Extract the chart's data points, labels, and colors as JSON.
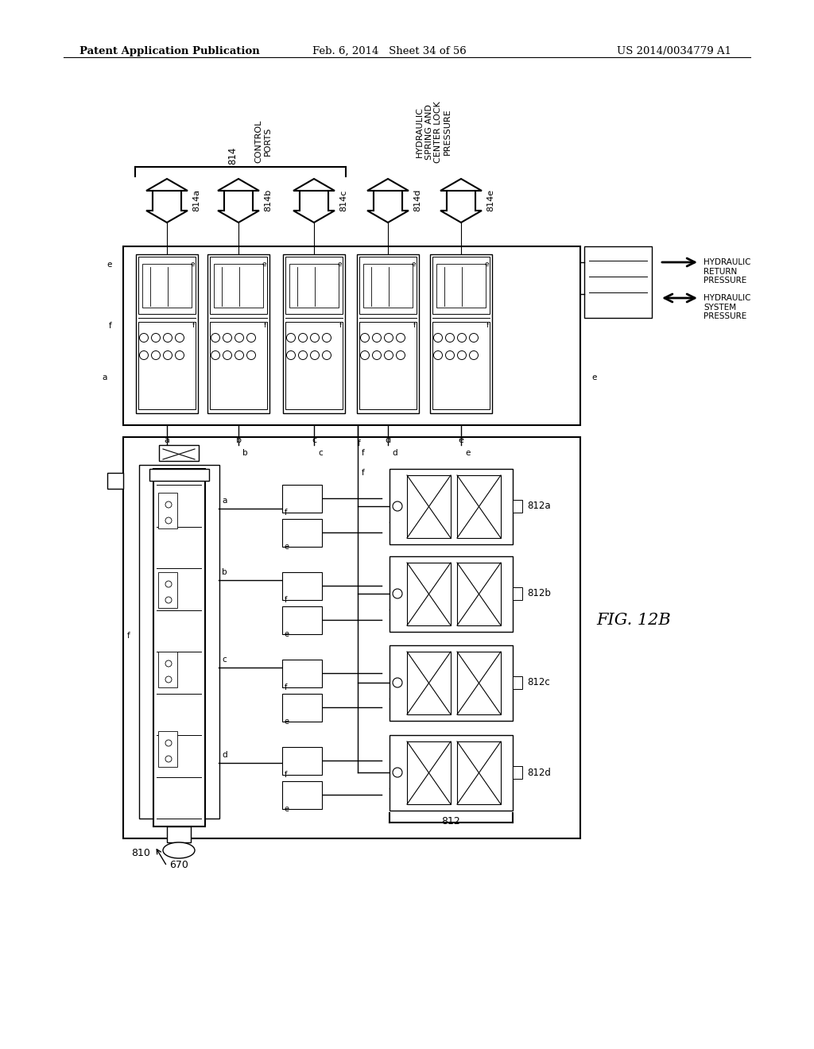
{
  "bg_color": "#ffffff",
  "line_color": "#000000",
  "header_left": "Patent Application Publication",
  "header_center": "Feb. 6, 2014   Sheet 34 of 56",
  "header_right": "US 2014/0034779 A1",
  "fig_label": "FIG. 12B",
  "label_810": "810",
  "label_670": "670",
  "label_812": "812",
  "label_812a": "812a",
  "label_812b": "812b",
  "label_812c": "812c",
  "label_812d": "812d",
  "label_814": "814",
  "label_814a": "814a",
  "label_814b": "814b",
  "label_814c": "814c",
  "label_814d": "814d",
  "label_814e": "814e",
  "text_control_ports": "CONTROL\nPORTS",
  "text_hydraulic_spring": "HYDRAULIC\nSPRING AND\nCENTER LOCK\nPRESSURE",
  "text_hydraulic_return": "HYDRAULIC\nRETURN\nPRESSURE",
  "text_hydraulic_system": "HYDRAULIC\nSYSTEM\nPRESSURE"
}
